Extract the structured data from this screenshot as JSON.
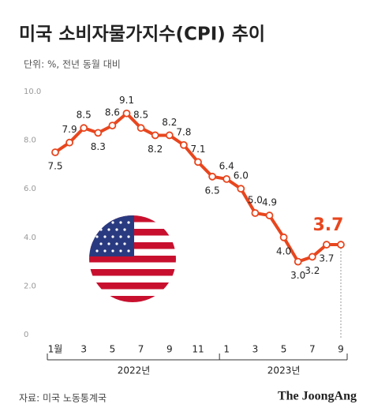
{
  "chart_data": {
    "type": "line",
    "title": "미국 소비자물가지수(CPI) 추이",
    "subtitle": "단위: %, 전년 동월 대비",
    "source": "자료: 미국 노동통계국",
    "brand": "The JoongAng",
    "categories": [
      "1월",
      null,
      "3",
      null,
      "5",
      null,
      "7",
      null,
      "9",
      null,
      "11",
      null,
      "1",
      null,
      "3",
      null,
      "5",
      null,
      "7",
      null,
      "9"
    ],
    "x_groups": [
      "2022년",
      "2023년"
    ],
    "series": [
      {
        "name": "CPI",
        "color": "#e8461e",
        "values": [
          7.5,
          7.9,
          8.5,
          8.3,
          8.6,
          9.1,
          8.5,
          8.2,
          8.2,
          7.8,
          7.1,
          6.5,
          6.4,
          6.0,
          5.0,
          4.9,
          4.0,
          3.0,
          3.2,
          3.7,
          3.7
        ],
        "value_labels": [
          "7.5",
          "7.9",
          "8.5",
          "8.3",
          "8.6",
          "9.1",
          "8.5",
          "8.2",
          "8.2",
          "7.8",
          "7.1",
          "6.5",
          "6.4",
          "6.0",
          "5.0",
          "4.9",
          "4.0",
          "3.0",
          "3.2",
          "3.7",
          "3.7"
        ]
      }
    ],
    "ylim": [
      0,
      10
    ],
    "yticks": [
      0,
      {
        "value": 2,
        "label": "2.0"
      },
      {
        "value": 4,
        "label": "4.0"
      },
      {
        "value": 6,
        "label": "6.0"
      },
      {
        "value": 8,
        "label": "8.0"
      },
      {
        "value": 10,
        "label": "10.0"
      }
    ],
    "grid": false
  }
}
